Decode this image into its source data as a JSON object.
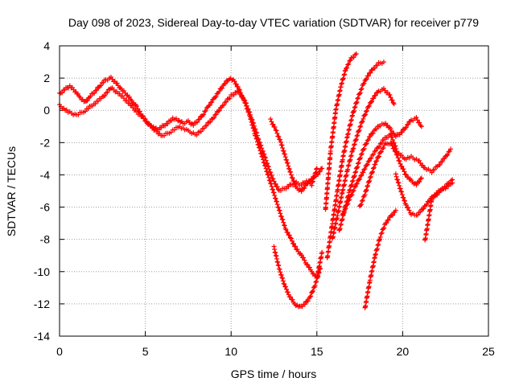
{
  "chart_data": {
    "type": "scatter",
    "title": "Day 098 of 2023, Sidereal Day-to-day VTEC variation (SDTVAR) for receiver p779",
    "xlabel": "GPS time / hours",
    "ylabel": "SDTVAR / TECUs",
    "xlim": [
      0,
      25
    ],
    "ylim": [
      -14,
      4
    ],
    "xticks": [
      0,
      5,
      10,
      15,
      20,
      25
    ],
    "yticks": [
      -14,
      -12,
      -10,
      -8,
      -6,
      -4,
      -2,
      0,
      2,
      4
    ],
    "grid": true,
    "legend": "none",
    "marker": "+",
    "color": "#ff0000",
    "tracks": [
      {
        "x": [
          0.0,
          0.3,
          0.6,
          0.9,
          1.2,
          1.5,
          1.8,
          2.1,
          2.4,
          2.7,
          3.0,
          3.3,
          3.6,
          3.9,
          4.2,
          4.5,
          4.8,
          5.1,
          5.4,
          5.7,
          6.0,
          6.3,
          6.6,
          6.9,
          7.2,
          7.5,
          7.8,
          8.1,
          8.4,
          8.7,
          9.0,
          9.3,
          9.6,
          9.9,
          10.2,
          10.5,
          10.8,
          11.1,
          11.4,
          11.7,
          12.0,
          12.3,
          12.6,
          12.9,
          13.2,
          13.5,
          13.8,
          14.1,
          14.4,
          14.7,
          15.0,
          15.3
        ],
        "y": [
          1.0,
          1.3,
          1.5,
          1.2,
          0.8,
          0.5,
          0.9,
          1.2,
          1.6,
          1.9,
          2.0,
          1.7,
          1.3,
          1.0,
          0.6,
          0.2,
          -0.3,
          -0.8,
          -1.0,
          -1.2,
          -1.0,
          -0.8,
          -0.5,
          -0.6,
          -0.8,
          -0.7,
          -0.9,
          -0.6,
          -0.2,
          0.3,
          0.7,
          1.2,
          1.6,
          2.0,
          1.8,
          1.2,
          0.5,
          -0.4,
          -1.5,
          -2.5,
          -3.5,
          -4.5,
          -5.5,
          -6.5,
          -7.4,
          -8.0,
          -8.6,
          -9.0,
          -9.5,
          -10.0,
          -10.4,
          -8.8
        ]
      },
      {
        "x": [
          0.0,
          0.5,
          1.0,
          1.5,
          2.0,
          2.5,
          3.0,
          3.5,
          4.0,
          4.5,
          5.0,
          5.5,
          6.0,
          6.5,
          7.0,
          7.5,
          8.0,
          8.5,
          9.0,
          9.5,
          10.0,
          10.4,
          10.8,
          11.2,
          11.6,
          12.0,
          12.4,
          12.8,
          13.2,
          13.5,
          13.8,
          14.1,
          14.4,
          14.7,
          15.0
        ],
        "y": [
          0.3,
          -0.1,
          -0.3,
          0.0,
          0.4,
          0.8,
          1.4,
          1.0,
          0.5,
          -0.1,
          -0.6,
          -1.2,
          -1.6,
          -1.3,
          -1.0,
          -1.3,
          -1.5,
          -1.0,
          -0.4,
          0.3,
          0.9,
          1.2,
          0.6,
          -0.5,
          -1.8,
          -3.0,
          -4.2,
          -5.0,
          -4.8,
          -4.6,
          -4.5,
          -4.6,
          -4.4,
          -4.6,
          -3.6
        ]
      },
      {
        "x": [
          12.5,
          12.8,
          13.1,
          13.4,
          13.7,
          14.0,
          14.3,
          14.6,
          14.9,
          15.2
        ],
        "y": [
          -8.5,
          -9.8,
          -10.8,
          -11.5,
          -12.0,
          -12.2,
          -12.0,
          -11.6,
          -10.8,
          -9.8
        ]
      },
      {
        "x": [
          12.3,
          12.6,
          12.9,
          13.2,
          13.5,
          13.8,
          14.1,
          14.4,
          14.7,
          15.0,
          15.3
        ],
        "y": [
          -0.6,
          -1.2,
          -2.0,
          -3.0,
          -4.0,
          -4.8,
          -5.0,
          -4.6,
          -4.2,
          -4.0,
          -3.6
        ]
      },
      {
        "x": [
          15.5,
          15.8,
          16.1,
          16.4,
          16.7,
          17.0,
          17.3
        ],
        "y": [
          -6.2,
          -2.5,
          0.0,
          1.5,
          2.6,
          3.2,
          3.5
        ]
      },
      {
        "x": [
          15.6,
          15.9,
          16.2,
          16.5,
          16.8,
          17.1,
          17.4,
          17.7,
          18.0,
          18.3,
          18.6,
          18.9
        ],
        "y": [
          -9.2,
          -7.0,
          -5.0,
          -3.0,
          -1.5,
          -0.2,
          0.8,
          1.6,
          2.2,
          2.6,
          2.9,
          3.0
        ]
      },
      {
        "x": [
          15.9,
          16.2,
          16.5,
          16.8,
          17.1,
          17.4,
          17.7,
          18.0,
          18.3,
          18.6,
          18.9,
          19.2,
          19.5
        ],
        "y": [
          -8.0,
          -6.5,
          -5.0,
          -3.6,
          -2.4,
          -1.4,
          -0.5,
          0.2,
          0.8,
          1.2,
          1.3,
          1.0,
          0.4
        ]
      },
      {
        "x": [
          16.3,
          16.6,
          16.9,
          17.2,
          17.5,
          17.8,
          18.1,
          18.4,
          18.7,
          19.0,
          19.3,
          19.6,
          19.9,
          20.2,
          20.5,
          20.8,
          21.1
        ],
        "y": [
          -7.5,
          -6.2,
          -5.0,
          -4.0,
          -3.0,
          -2.2,
          -1.6,
          -1.2,
          -0.9,
          -0.8,
          -1.2,
          -1.6,
          -1.4,
          -1.0,
          -0.6,
          -0.5,
          -1.0
        ]
      },
      {
        "x": [
          16.5,
          16.9,
          17.3,
          17.7,
          18.1,
          18.5,
          18.9,
          19.3,
          19.7,
          20.1,
          20.5,
          20.9,
          21.3,
          21.7,
          22.1,
          22.5,
          22.8
        ],
        "y": [
          -6.5,
          -5.5,
          -4.6,
          -3.8,
          -3.0,
          -2.4,
          -1.8,
          -1.5,
          -2.6,
          -3.0,
          -2.9,
          -3.1,
          -3.6,
          -3.8,
          -3.4,
          -2.9,
          -2.4
        ]
      },
      {
        "x": [
          17.8,
          18.1,
          18.4,
          18.7,
          19.0,
          19.3,
          19.6
        ],
        "y": [
          -12.3,
          -10.5,
          -9.0,
          -7.8,
          -7.0,
          -6.6,
          -6.2
        ]
      },
      {
        "x": [
          17.5,
          17.8,
          18.1,
          18.4,
          18.7,
          19.0,
          19.3,
          19.6,
          19.9,
          20.2,
          20.5,
          20.8,
          21.1
        ],
        "y": [
          -6.0,
          -5.2,
          -4.2,
          -3.3,
          -2.6,
          -2.1,
          -2.0,
          -2.6,
          -3.4,
          -4.0,
          -4.4,
          -4.6,
          -4.2
        ]
      },
      {
        "x": [
          19.6,
          19.9,
          20.2,
          20.5,
          20.8,
          21.1,
          21.4,
          21.7,
          22.0,
          22.3,
          22.6,
          22.9
        ],
        "y": [
          -4.0,
          -5.0,
          -5.9,
          -6.4,
          -6.5,
          -6.2,
          -5.8,
          -5.4,
          -5.2,
          -4.9,
          -4.6,
          -4.3
        ]
      },
      {
        "x": [
          21.3,
          21.7,
          22.1,
          22.5,
          22.9
        ],
        "y": [
          -8.1,
          -5.5,
          -5.0,
          -4.8,
          -4.5
        ]
      }
    ]
  }
}
